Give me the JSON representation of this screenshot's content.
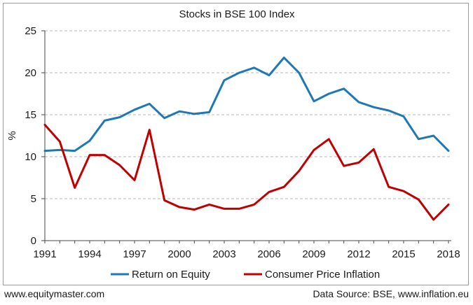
{
  "chart_data": {
    "type": "line",
    "title": "Stocks in BSE 100 Index",
    "xlabel": "",
    "ylabel": "%",
    "xlim": [
      1991,
      2018
    ],
    "ylim": [
      0,
      25
    ],
    "yticks": [
      0,
      5,
      10,
      15,
      20,
      25
    ],
    "xticks": [
      1991,
      1994,
      1997,
      2000,
      2003,
      2006,
      2009,
      2012,
      2015,
      2018
    ],
    "grid": "horizontal dashed",
    "legend_position": "bottom",
    "x": [
      1991,
      1992,
      1993,
      1994,
      1995,
      1996,
      1997,
      1998,
      1999,
      2000,
      2001,
      2002,
      2003,
      2004,
      2005,
      2006,
      2007,
      2008,
      2009,
      2010,
      2011,
      2012,
      2013,
      2014,
      2015,
      2016,
      2017,
      2018
    ],
    "series": [
      {
        "name": "Return on Equity",
        "color": "#1f77b4",
        "values": [
          10.7,
          10.8,
          10.7,
          11.9,
          14.3,
          14.7,
          15.6,
          16.3,
          14.6,
          15.4,
          15.1,
          15.3,
          19.1,
          20.0,
          20.6,
          19.7,
          21.8,
          20.0,
          16.6,
          17.5,
          18.1,
          16.5,
          15.9,
          15.5,
          14.8,
          12.1,
          12.5,
          10.7
        ]
      },
      {
        "name": "Consumer Price Inflation",
        "color": "#c00000",
        "values": [
          13.8,
          11.8,
          6.3,
          10.2,
          10.2,
          9.0,
          7.2,
          13.2,
          4.8,
          4.0,
          3.7,
          4.3,
          3.8,
          3.8,
          4.3,
          5.8,
          6.4,
          8.3,
          10.8,
          12.1,
          8.9,
          9.3,
          10.9,
          6.4,
          5.9,
          4.9,
          2.5,
          4.3
        ]
      }
    ]
  },
  "footer": {
    "left": "www.equitymaster.com",
    "right": "Data Source: BSE, www.inflation.eu"
  }
}
